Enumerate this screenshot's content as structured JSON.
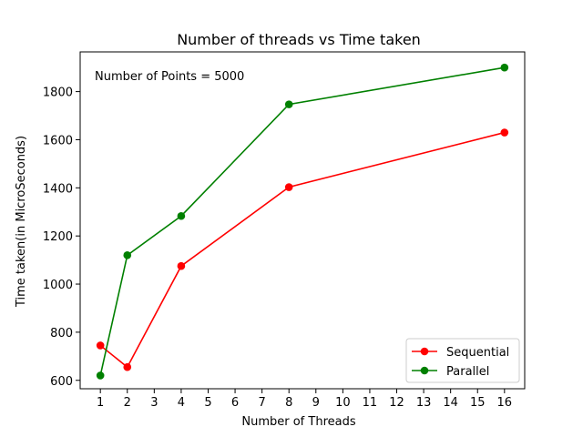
{
  "chart_data": {
    "type": "line",
    "title": "Number of threads vs Time taken",
    "xlabel": "Number of Threads",
    "ylabel": "Time taken(in MicroSeconds)",
    "annotation": "Number of Points = 5000",
    "xlim": [
      0.25,
      16.75
    ],
    "ylim": [
      565,
      1965
    ],
    "xticks": [
      1,
      2,
      3,
      4,
      5,
      6,
      7,
      8,
      9,
      10,
      11,
      12,
      13,
      14,
      15,
      16
    ],
    "yticks": [
      600,
      800,
      1000,
      1200,
      1400,
      1600,
      1800
    ],
    "grid": false,
    "legend_position": "lower-right",
    "x": [
      1,
      2,
      4,
      8,
      16
    ],
    "series": [
      {
        "name": "Sequential",
        "color": "#ff0000",
        "values": [
          745,
          655,
          1075,
          1403,
          1630
        ]
      },
      {
        "name": "Parallel",
        "color": "#008000",
        "values": [
          620,
          1120,
          1283,
          1747,
          1900
        ]
      }
    ]
  }
}
